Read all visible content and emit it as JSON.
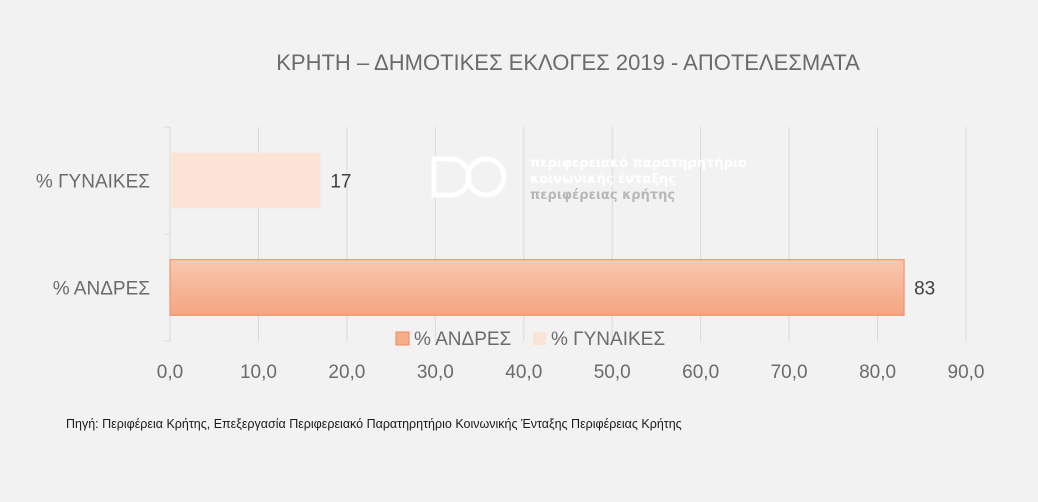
{
  "chart_data": {
    "type": "bar",
    "orientation": "horizontal",
    "title": "ΚΡΗΤΗ – ΔΗΜΟΤΙΚΕΣ ΕΚΛΟΓΕΣ 2019  - ΑΠΟΤΕΛΕΣΜΑΤΑ",
    "categories": [
      "% ΓΥΝΑΙΚΕΣ",
      "% ΑΝΔΡΕΣ"
    ],
    "values": [
      17,
      83
    ],
    "value_labels": [
      "17",
      "83"
    ],
    "xlim": [
      0,
      90
    ],
    "x_ticks": [
      "0,0",
      "10,0",
      "20,0",
      "30,0",
      "40,0",
      "50,0",
      "60,0",
      "70,0",
      "80,0",
      "90,0"
    ],
    "grid": true,
    "legend_position": "bottom",
    "legend": [
      {
        "label": "% ΑΝΔΡΕΣ",
        "color": "#f4ae8c"
      },
      {
        "label": "% ΓΥΝΑΙΚΕΣ",
        "color": "#fbe4d6"
      }
    ],
    "bar_colors": [
      "#fbe4d6",
      "#f4ae8c"
    ]
  },
  "watermark": {
    "lines": [
      "περιφερειακό παρατηρητήριο",
      "κοινωνικής ένταξης",
      "περιφέρειας κρήτης"
    ]
  },
  "source_note": "Πηγή: Περιφέρεια Κρήτης, Επεξεργασία Περιφερειακό Παρατηρητήριο Κοινωνικής Ένταξης Περιφέρειας Κρήτης"
}
